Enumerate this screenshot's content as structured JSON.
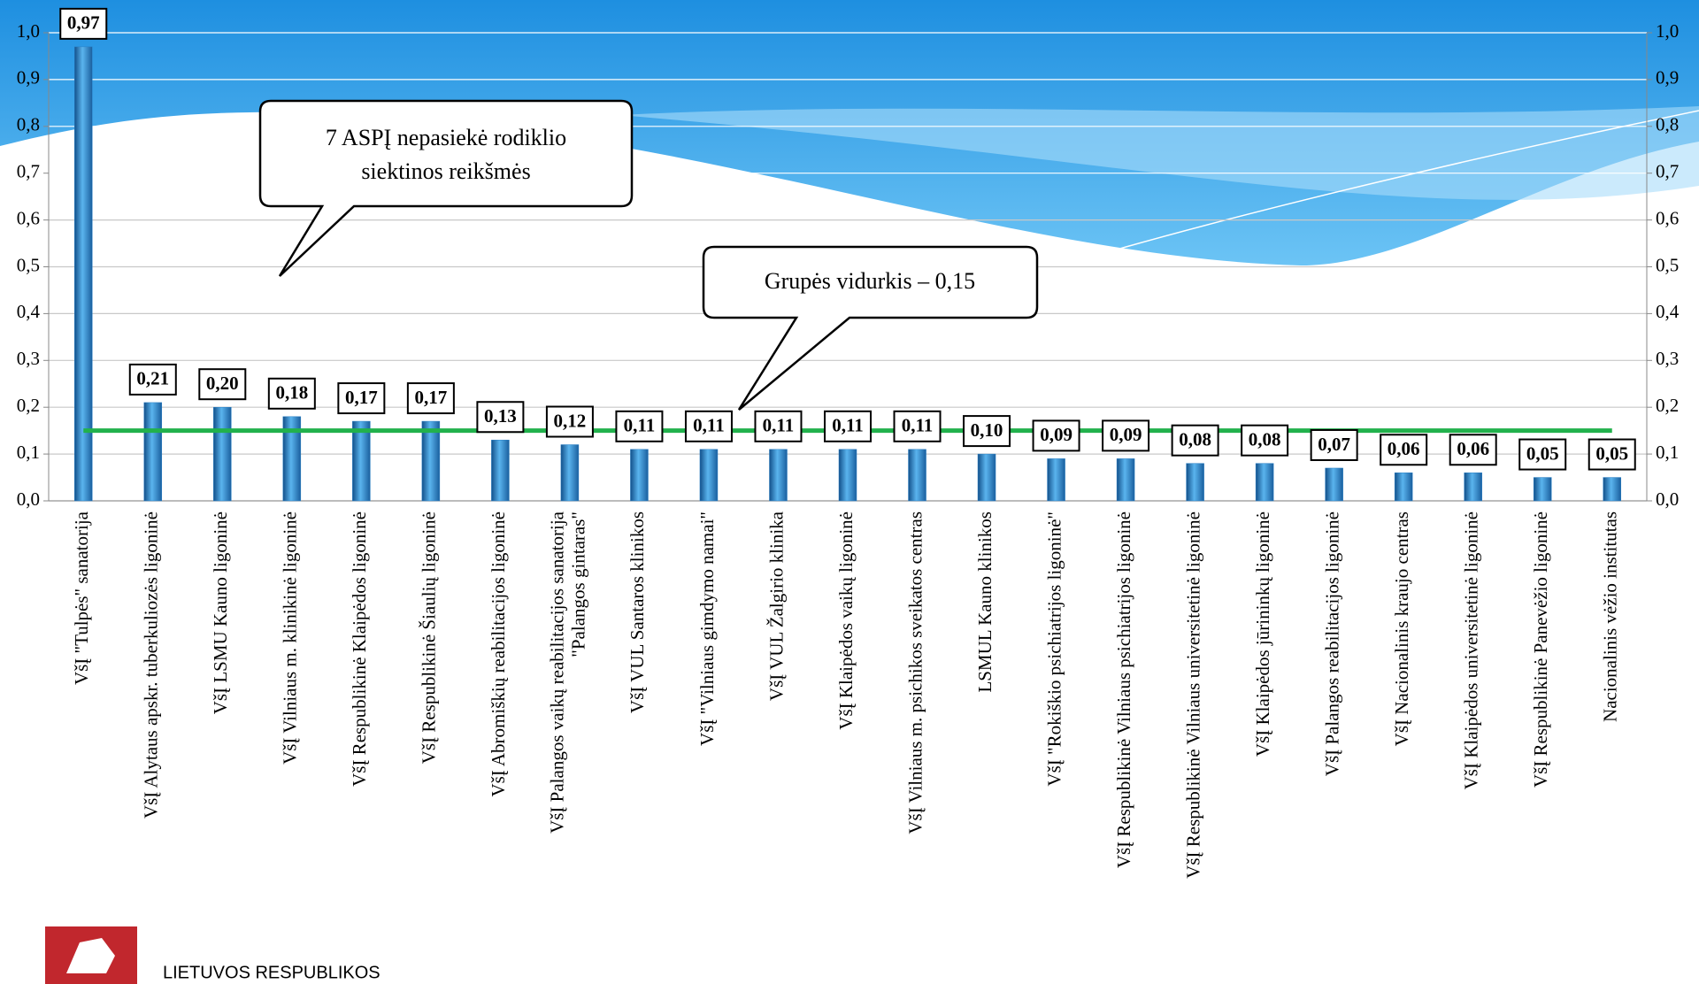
{
  "chart_data": {
    "type": "bar",
    "categories": [
      "VšĮ \"Tulpės\" sanatorija",
      "VšĮ Alytaus apskr. tuberkuliozės ligoninė",
      "VšĮ LSMU Kauno ligoninė",
      "VšĮ Vilniaus m. klinikinė ligoninė",
      "VšĮ Respublikinė Klaipėdos ligoninė",
      "VšĮ Respublikinė Šiaulių ligoninė",
      "VšĮ Abromiškių reabilitacijos ligoninė",
      [
        "VšĮ Palangos vaikų reabilitacijos sanatorija",
        "\"Palangos gintaras\""
      ],
      "VšĮ VUL Santaros klinikos",
      "VšĮ \"Vilniaus gimdymo namai\"",
      "VšĮ VUL Žalgirio klinika",
      "VšĮ Klaipėdos vaikų ligoninė",
      "VšĮ Vilniaus m. psichikos sveikatos centras",
      "LSMUL Kauno klinikos",
      "VšĮ \"Rokiškio psichiatrijos ligoninė\"",
      "VšĮ Respublikinė Vilniaus psichiatrijos ligoninė",
      "VšĮ Respublikinė Vilniaus universitetinė ligoninė",
      "VšĮ Klaipėdos jūrininkų ligoninė",
      "VšĮ Palangos reabilitacijos ligoninė",
      "VšĮ Nacionalinis kraujo centras",
      "VšĮ Klaipėdos universitetinė ligoninė",
      "VšĮ Respublikinė Panevėžio ligoninė",
      "Nacionalinis vėžio institutas"
    ],
    "values": [
      0.97,
      0.21,
      0.2,
      0.18,
      0.17,
      0.17,
      0.13,
      0.12,
      0.11,
      0.11,
      0.11,
      0.11,
      0.11,
      0.1,
      0.09,
      0.09,
      0.08,
      0.08,
      0.07,
      0.06,
      0.06,
      0.05,
      0.05
    ],
    "value_labels": [
      "0,97",
      "0,21",
      "0,20",
      "0,18",
      "0,17",
      "0,17",
      "0,13",
      "0,12",
      "0,11",
      "0,11",
      "0,11",
      "0,11",
      "0,11",
      "0,10",
      "0,09",
      "0,09",
      "0,08",
      "0,08",
      "0,07",
      "0,06",
      "0,06",
      "0,05",
      "0,05"
    ],
    "label_colors": [
      "#e00000",
      "#e00000",
      "#e00000",
      "#e00000",
      "#e00000",
      "#e00000",
      "#e00000",
      "#000000",
      "#000000",
      "#000000",
      "#000000",
      "#000000",
      "#000000",
      "#000000",
      "#000000",
      "#000000",
      "#000000",
      "#000000",
      "#000000",
      "#000000",
      "#000000",
      "#000000",
      "#000000"
    ],
    "color": "#2a7fc4",
    "ylim": [
      0,
      1.0
    ],
    "yticks": [
      {
        "value": 0,
        "label": "0,0"
      },
      {
        "value": 0.1,
        "label": "0,1"
      },
      {
        "value": 0.2,
        "label": "0,2"
      },
      {
        "value": 0.3,
        "label": "0,3"
      },
      {
        "value": 0.4,
        "label": "0,4"
      },
      {
        "value": 0.5,
        "label": "0,5"
      },
      {
        "value": 0.6,
        "label": "0,6"
      },
      {
        "value": 0.7,
        "label": "0,7"
      },
      {
        "value": 0.8,
        "label": "0,8"
      },
      {
        "value": 0.9,
        "label": "0,9"
      },
      {
        "value": 1.0,
        "label": "1,0"
      }
    ],
    "y2lim": [
      0,
      1.0
    ],
    "y2ticks": [
      {
        "value": 0,
        "label": "0,0"
      },
      {
        "value": 0.1,
        "label": "0,1"
      },
      {
        "value": 0.2,
        "label": "0,2"
      },
      {
        "value": 0.3,
        "label": "0,3"
      },
      {
        "value": 0.4,
        "label": "0,4"
      },
      {
        "value": 0.5,
        "label": "0,5"
      },
      {
        "value": 0.6,
        "label": "0,6"
      },
      {
        "value": 0.7,
        "label": "0,7"
      },
      {
        "value": 0.8,
        "label": "0,8"
      },
      {
        "value": 0.9,
        "label": "0,9"
      },
      {
        "value": 1.0,
        "label": "1,0"
      }
    ],
    "grid": true,
    "reference_line": {
      "value": 0.15,
      "color": "#22b14c"
    },
    "annotations": [
      {
        "text": [
          "7 ASPĮ nepasiekė rodiklio",
          "siektinos reikšmės"
        ]
      },
      {
        "text": [
          "Grupės vidurkis – 0,15"
        ]
      }
    ]
  },
  "footer": {
    "text": "LIETUVOS RESPUBLIKOS"
  }
}
